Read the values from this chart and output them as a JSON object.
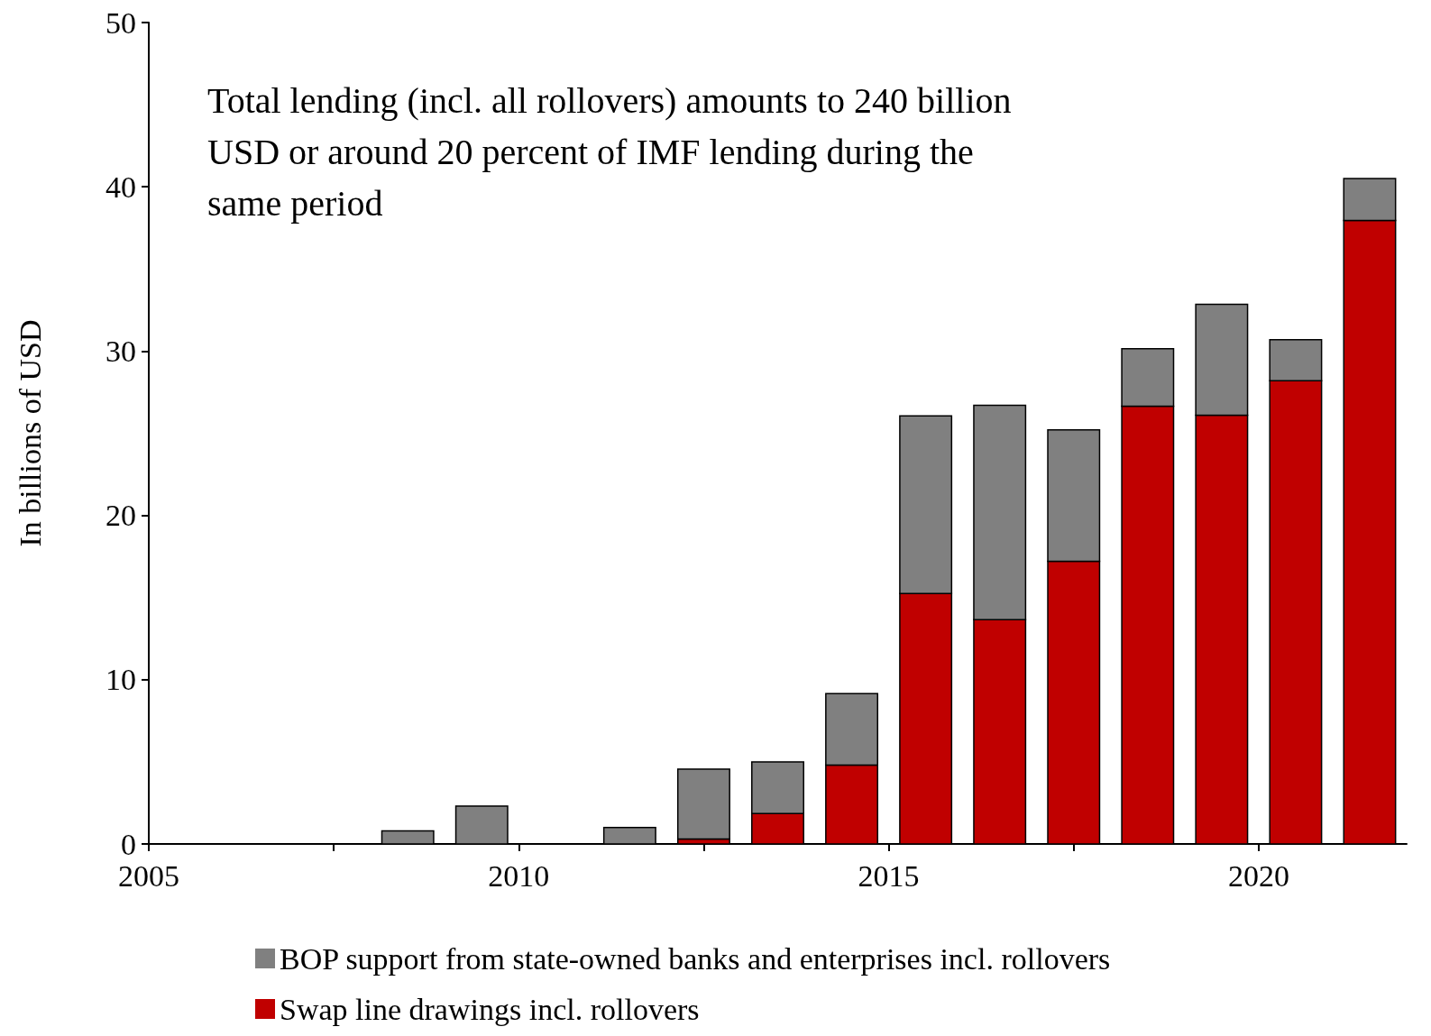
{
  "chart_data": {
    "type": "bar",
    "stacked": true,
    "ylabel": "In billions of USD",
    "annotations": [
      "Total lending (incl. all rollovers) amounts to 240 billion USD or around 20 percent of IMF lending during the same period"
    ],
    "x": [
      2005.5,
      2006.5,
      2007.5,
      2008.5,
      2009.5,
      2010.5,
      2011.5,
      2012.5,
      2013.5,
      2014.5,
      2015.5,
      2016.5,
      2017.5,
      2018.5,
      2019.5,
      2020.5,
      2021.5
    ],
    "xlim": [
      2005,
      2022
    ],
    "xticks": [
      2005,
      {
        "value": 2007.5,
        "label": null
      },
      2010,
      {
        "value": 2012.5,
        "label": null
      },
      2015,
      {
        "value": 2017.5,
        "label": null
      },
      2020
    ],
    "ylim": [
      0,
      50
    ],
    "yticks": [
      0,
      10,
      20,
      30,
      40,
      50
    ],
    "series": [
      {
        "name": "Swap line drawings incl. rollovers",
        "color": "#c00000",
        "values": [
          0,
          0,
          0,
          0,
          0,
          0,
          0,
          0.3,
          1.85,
          4.8,
          15.25,
          13.65,
          17.2,
          26.65,
          26.1,
          28.2,
          37.95
        ]
      },
      {
        "name": "BOP support from state-owned banks and enterprises incl. rollovers",
        "color": "#808080",
        "values": [
          0,
          0,
          0,
          0.8,
          2.3,
          0,
          1.0,
          4.25,
          3.15,
          4.35,
          10.8,
          13.05,
          8.0,
          3.5,
          6.75,
          2.5,
          2.55
        ]
      }
    ],
    "legend": "bottom",
    "grid": false
  }
}
